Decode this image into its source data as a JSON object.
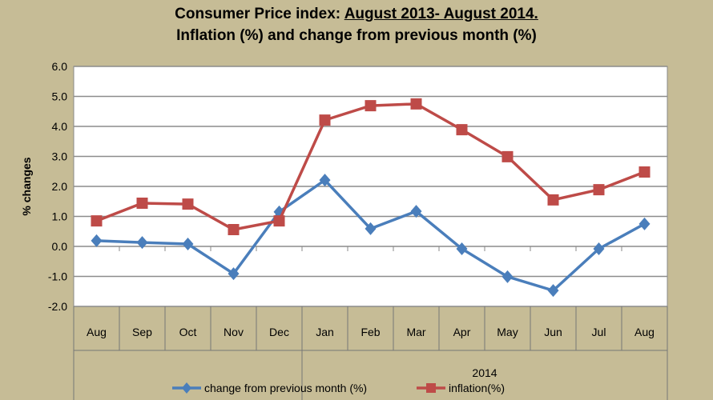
{
  "chart_data": {
    "type": "line",
    "title_line1_prefix": "Consumer Price index: ",
    "title_line1_underlined": "August 2013- August 2014.",
    "title_line2": "Inflation (%) and change from previous month (%)",
    "ylabel": "% changes",
    "ylim": [
      -2,
      6
    ],
    "yticks": [
      "6.0",
      "5.0",
      "4.0",
      "3.0",
      "2.0",
      "1.0",
      "0.0",
      "-1.0",
      "-2.0"
    ],
    "categories": [
      "Aug",
      "Sep",
      "Oct",
      "Nov",
      "Dec",
      "Jan",
      "Feb",
      "Mar",
      "Apr",
      "May",
      "Jun",
      "Jul",
      "Aug"
    ],
    "year_group_label": "2014",
    "grid": true,
    "legend": "bottom",
    "series": [
      {
        "name": "change from previous month (%)",
        "color": "#4a7ebb",
        "marker": "diamond",
        "values": [
          0.19,
          0.13,
          0.08,
          -0.91,
          1.15,
          2.21,
          0.59,
          1.17,
          -0.08,
          -1.01,
          -1.47,
          -0.08,
          0.75
        ]
      },
      {
        "name": "inflation(%)",
        "color": "#be4b48",
        "marker": "square",
        "values": [
          0.85,
          1.44,
          1.41,
          0.56,
          0.85,
          4.21,
          4.69,
          4.75,
          3.89,
          2.99,
          1.55,
          1.89,
          2.48
        ]
      }
    ]
  }
}
